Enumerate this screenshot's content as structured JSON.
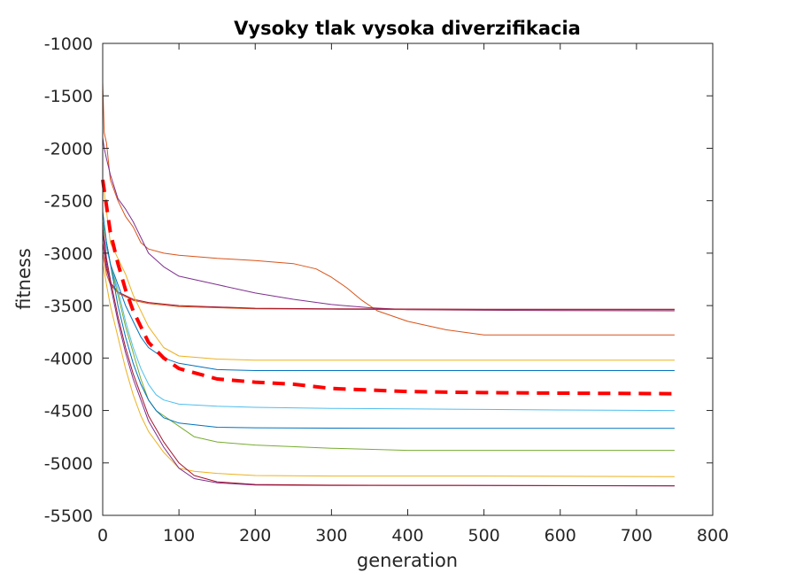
{
  "chart_data": {
    "type": "line",
    "title": "Vysoky tlak vysoka diverzifikacia",
    "xlabel": "generation",
    "ylabel": "fitness",
    "xlim": [
      0,
      800
    ],
    "ylim": [
      -5500,
      -1000
    ],
    "xticks": [
      0,
      100,
      200,
      300,
      400,
      500,
      600,
      700,
      800
    ],
    "yticks": [
      -5500,
      -5000,
      -4500,
      -4000,
      -3500,
      -3000,
      -2500,
      -2000,
      -1500,
      -1000
    ],
    "grid": false,
    "legend": "none",
    "series": [
      {
        "color": "#d95319",
        "width": 1,
        "x": [
          0,
          2,
          5,
          10,
          20,
          30,
          40,
          50,
          60,
          80,
          100,
          150,
          200,
          250,
          280,
          300,
          320,
          340,
          360,
          400,
          450,
          500,
          600,
          750
        ],
        "y": [
          -1370,
          -1850,
          -1950,
          -2300,
          -2500,
          -2650,
          -2750,
          -2900,
          -2960,
          -3000,
          -3020,
          -3050,
          -3070,
          -3100,
          -3150,
          -3230,
          -3330,
          -3450,
          -3550,
          -3650,
          -3730,
          -3780,
          -3780,
          -3780
        ]
      },
      {
        "color": "#7e2f8e",
        "width": 1,
        "x": [
          0,
          2,
          5,
          10,
          20,
          30,
          40,
          50,
          60,
          80,
          100,
          150,
          200,
          250,
          300,
          350,
          400,
          500,
          600,
          750
        ],
        "y": [
          -1900,
          -2000,
          -2100,
          -2250,
          -2480,
          -2580,
          -2700,
          -2850,
          -3000,
          -3130,
          -3220,
          -3300,
          -3380,
          -3440,
          -3490,
          -3520,
          -3540,
          -3545,
          -3548,
          -3550
        ]
      },
      {
        "color": "#d95319",
        "width": 1,
        "x": [
          0,
          5,
          10,
          20,
          40,
          60,
          100,
          200,
          300,
          400,
          500,
          750
        ],
        "y": [
          -3000,
          -3200,
          -3300,
          -3380,
          -3450,
          -3480,
          -3510,
          -3530,
          -3535,
          -3538,
          -3540,
          -3540
        ]
      },
      {
        "color": "#a2142f",
        "width": 1,
        "x": [
          0,
          5,
          10,
          20,
          40,
          60,
          100,
          200,
          300,
          400,
          500,
          750
        ],
        "y": [
          -2900,
          -3150,
          -3280,
          -3370,
          -3440,
          -3470,
          -3500,
          -3525,
          -3530,
          -3533,
          -3535,
          -3535
        ]
      },
      {
        "color": "#edb120",
        "width": 1,
        "x": [
          0,
          5,
          10,
          20,
          30,
          40,
          60,
          80,
          100,
          150,
          200,
          300,
          400,
          500,
          750
        ],
        "y": [
          -2300,
          -2600,
          -2900,
          -3050,
          -3200,
          -3400,
          -3700,
          -3900,
          -3980,
          -4010,
          -4020,
          -4020,
          -4020,
          -4020,
          -4020
        ]
      },
      {
        "color": "#0072bd",
        "width": 1,
        "x": [
          0,
          5,
          10,
          20,
          30,
          40,
          50,
          60,
          80,
          100,
          150,
          200,
          300,
          400,
          500,
          750
        ],
        "y": [
          -2700,
          -2900,
          -3100,
          -3300,
          -3500,
          -3650,
          -3800,
          -3900,
          -4000,
          -4050,
          -4110,
          -4120,
          -4120,
          -4120,
          -4120,
          -4120
        ]
      },
      {
        "color": "#ff0000",
        "width": 4,
        "dash": "14,9",
        "x": [
          0,
          5,
          10,
          20,
          30,
          40,
          60,
          80,
          100,
          150,
          200,
          250,
          300,
          400,
          500,
          600,
          750
        ],
        "y": [
          -2300,
          -2550,
          -2800,
          -3100,
          -3350,
          -3550,
          -3850,
          -4000,
          -4100,
          -4200,
          -4230,
          -4250,
          -4290,
          -4320,
          -4330,
          -4335,
          -4340
        ]
      },
      {
        "color": "#4dbeee",
        "width": 1,
        "x": [
          0,
          5,
          10,
          20,
          30,
          40,
          50,
          60,
          70,
          80,
          100,
          150,
          200,
          300,
          400,
          500,
          600,
          750
        ],
        "y": [
          -2800,
          -2950,
          -3100,
          -3350,
          -3650,
          -3900,
          -4100,
          -4250,
          -4350,
          -4400,
          -4440,
          -4460,
          -4470,
          -4480,
          -4485,
          -4490,
          -4495,
          -4500
        ]
      },
      {
        "color": "#77ac30",
        "width": 1,
        "x": [
          0,
          5,
          10,
          20,
          30,
          40,
          50,
          60,
          70,
          80,
          100,
          120,
          150,
          200,
          300,
          400,
          500,
          750
        ],
        "y": [
          -2700,
          -2900,
          -3100,
          -3400,
          -3700,
          -3950,
          -4200,
          -4400,
          -4500,
          -4550,
          -4650,
          -4750,
          -4800,
          -4830,
          -4860,
          -4880,
          -4880,
          -4880
        ]
      },
      {
        "color": "#0072bd",
        "width": 1,
        "x": [
          0,
          5,
          10,
          20,
          30,
          40,
          50,
          60,
          70,
          80,
          100,
          150,
          200,
          300,
          400,
          500,
          750
        ],
        "y": [
          -2600,
          -2900,
          -3100,
          -3500,
          -3800,
          -4050,
          -4250,
          -4400,
          -4500,
          -4570,
          -4620,
          -4660,
          -4665,
          -4668,
          -4670,
          -4670,
          -4670
        ]
      },
      {
        "color": "#edb120",
        "width": 1,
        "x": [
          0,
          5,
          10,
          20,
          30,
          40,
          50,
          60,
          80,
          100,
          120,
          150,
          200,
          300,
          400,
          500,
          750
        ],
        "y": [
          -3100,
          -3300,
          -3500,
          -3800,
          -4100,
          -4350,
          -4550,
          -4700,
          -4900,
          -5050,
          -5080,
          -5100,
          -5120,
          -5125,
          -5125,
          -5125,
          -5130
        ]
      },
      {
        "color": "#7e2f8e",
        "width": 1,
        "x": [
          0,
          5,
          10,
          20,
          30,
          40,
          50,
          60,
          80,
          100,
          120,
          150,
          200,
          300,
          400,
          500,
          750
        ],
        "y": [
          -2800,
          -3100,
          -3300,
          -3650,
          -3950,
          -4200,
          -4400,
          -4600,
          -4850,
          -5050,
          -5150,
          -5190,
          -5210,
          -5215,
          -5215,
          -5215,
          -5220
        ]
      },
      {
        "color": "#a2142f",
        "width": 1,
        "x": [
          0,
          5,
          10,
          20,
          30,
          40,
          50,
          60,
          80,
          100,
          120,
          150,
          200,
          300,
          400,
          500,
          750
        ],
        "y": [
          -2750,
          -3050,
          -3250,
          -3600,
          -3900,
          -4150,
          -4350,
          -4550,
          -4800,
          -5000,
          -5120,
          -5180,
          -5205,
          -5212,
          -5214,
          -5215,
          -5218
        ]
      }
    ]
  }
}
